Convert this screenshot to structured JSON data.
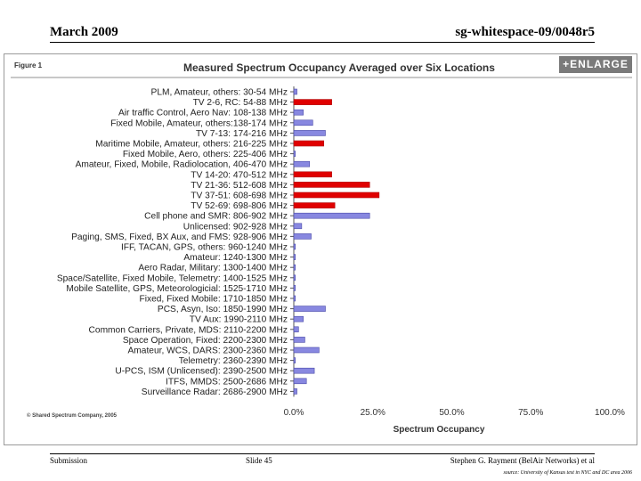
{
  "header": {
    "date": "March 2009",
    "doc_id": "sg-whitespace-09/0048r5"
  },
  "figure": {
    "label": "Figure 1",
    "enlarge_label": "+ENLARGE",
    "copyright": "© Shared Spectrum Company, 2005"
  },
  "colors": {
    "red": "#e00000",
    "blue": "#8888e0",
    "blue_edge": "#4a4aa8",
    "axis": "#555555",
    "grid": "#dddddd"
  },
  "chart_data": {
    "type": "bar",
    "orientation": "horizontal",
    "title": "Measured Spectrum Occupancy Averaged over Six Locations",
    "xlabel": "Spectrum Occupancy",
    "ylabel": "",
    "xlim": [
      0,
      100
    ],
    "xticks": [
      "0.0%",
      "25.0%",
      "50.0%",
      "75.0%",
      "100.0%"
    ],
    "xtick_values": [
      0,
      25,
      50,
      75,
      100
    ],
    "grid": false,
    "categories": [
      "PLM, Amateur, others: 30-54 MHz",
      "TV 2-6, RC: 54-88 MHz",
      "Air traffic Control, Aero Nav: 108-138 MHz",
      "Fixed Mobile, Amateur, others:138-174 MHz",
      "TV 7-13: 174-216 MHz",
      "Maritime Mobile, Amateur, others: 216-225 MHz",
      "Fixed Mobile, Aero, others: 225-406 MHz",
      "Amateur, Fixed, Mobile, Radiolocation, 406-470 MHz",
      "TV 14-20: 470-512 MHz",
      "TV 21-36: 512-608 MHz",
      "TV 37-51: 608-698 MHz",
      "TV 52-69: 698-806 MHz",
      "Cell phone and SMR: 806-902 MHz",
      "Unlicensed: 902-928 MHz",
      "Paging, SMS, Fixed, BX Aux, and FMS: 928-906 MHz",
      "IFF, TACAN, GPS, others: 960-1240 MHz",
      "Amateur: 1240-1300 MHz",
      "Aero Radar, Military: 1300-1400 MHz",
      "Space/Satellite, Fixed Mobile, Telemetry: 1400-1525 MHz",
      "Mobile Satellite, GPS, Meteorologicial: 1525-1710 MHz",
      "Fixed, Fixed Mobile: 1710-1850 MHz",
      "PCS, Asyn, Iso: 1850-1990 MHz",
      "TV Aux: 1990-2110 MHz",
      "Common Carriers, Private, MDS: 2110-2200 MHz",
      "Space Operation, Fixed: 2200-2300 MHz",
      "Amateur, WCS, DARS: 2300-2360 MHz",
      "Telemetry: 2360-2390 MHz",
      "U-PCS, ISM (Unlicensed): 2390-2500 MHz",
      "ITFS, MMDS: 2500-2686 MHz",
      "Surveillance Radar: 2686-2900 MHz"
    ],
    "values": [
      1,
      12,
      3,
      6,
      10,
      9.5,
      0.5,
      5,
      12,
      24,
      27,
      13,
      24,
      2.5,
      5.5,
      0.5,
      0.5,
      0.5,
      0.5,
      0.5,
      0.5,
      10,
      3,
      1.5,
      3.5,
      8,
      0.5,
      6.5,
      4,
      1
    ],
    "series_color": [
      "blue",
      "red",
      "blue",
      "blue",
      "blue",
      "red",
      "blue",
      "blue",
      "red",
      "red",
      "red",
      "red",
      "blue",
      "blue",
      "blue",
      "blue",
      "blue",
      "blue",
      "blue",
      "blue",
      "blue",
      "blue",
      "blue",
      "blue",
      "blue",
      "blue",
      "blue",
      "blue",
      "blue",
      "blue"
    ]
  },
  "footer": {
    "left": "Submission",
    "center": "Slide 45",
    "right": "Stephen G. Rayment (BelAir Networks) et al",
    "source": "source: University of Kansas test in NYC and DC area 2006"
  }
}
